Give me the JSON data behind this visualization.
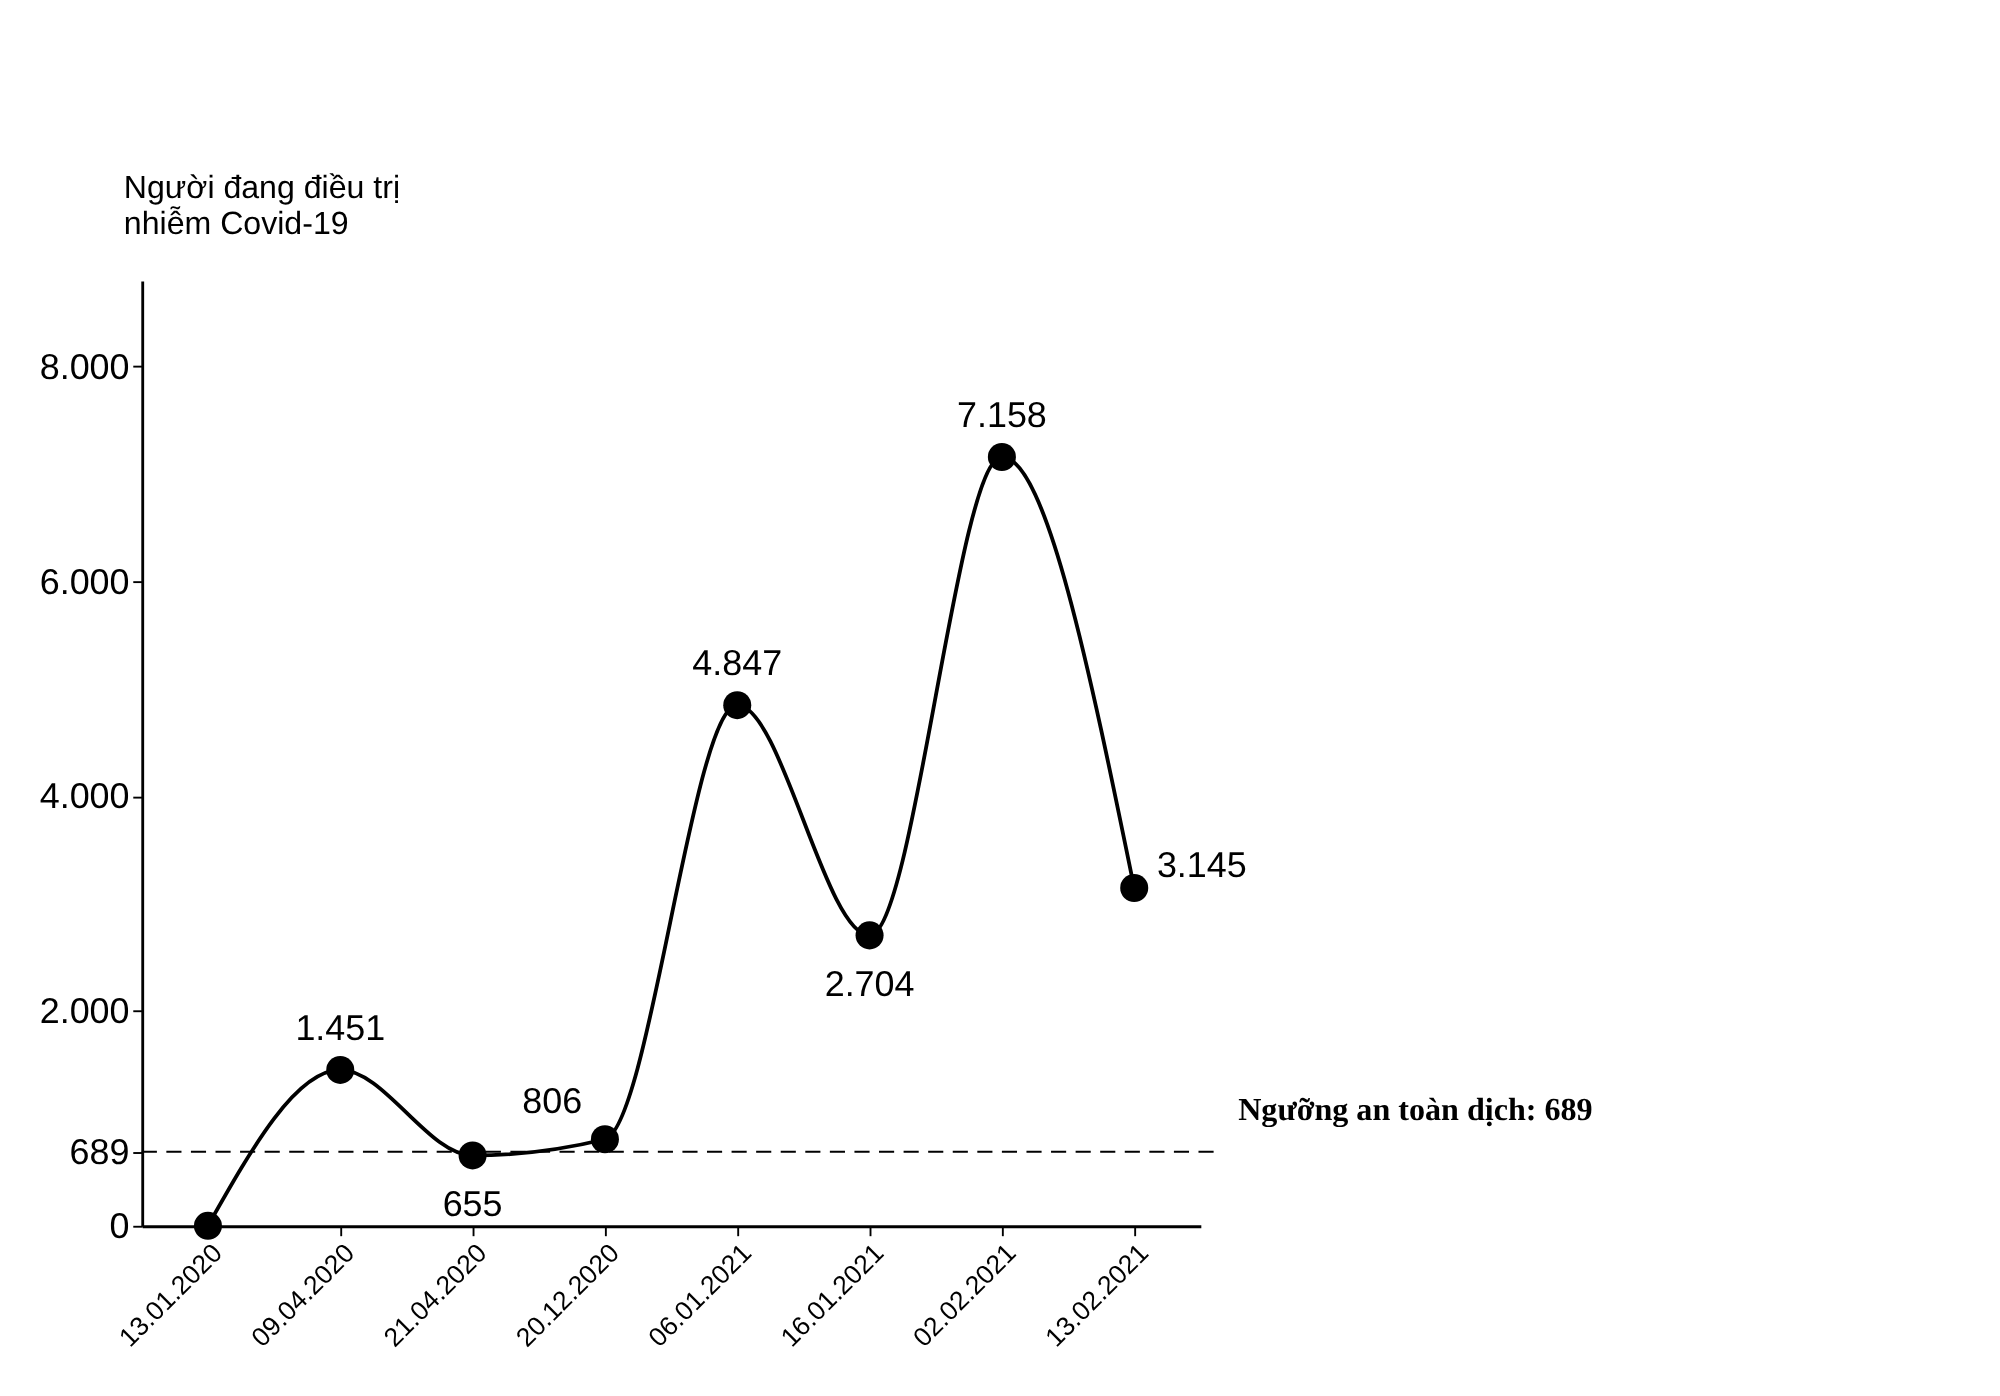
{
  "chart_data": {
    "type": "line",
    "ylabel": "Người đang điều trị nhiễm Covid-19",
    "categories": [
      "13.01.2020",
      "09.04.2020",
      "21.04.2020",
      "20.12.2020",
      "06.01.2021",
      "16.01.2021",
      "02.02.2021",
      "13.02.2021"
    ],
    "series": [
      {
        "color": "#000000",
        "values": [
          0,
          1451,
          655,
          806,
          4847,
          2704,
          7158,
          3145
        ]
      }
    ],
    "value_labels": [
      null,
      "1.451",
      "655",
      "806",
      "4.847",
      "2.704",
      "7.158",
      "3.145"
    ],
    "ylim": [
      0,
      8800
    ],
    "yticks": [
      0,
      689,
      {
        "value": 2000,
        "label": "2.000"
      },
      {
        "value": 4000,
        "label": "4.000"
      },
      {
        "value": 6000,
        "label": "6.000"
      },
      {
        "value": 8000,
        "label": "8.000"
      }
    ],
    "ref_lines": [
      {
        "axis": "y",
        "value": 689,
        "label": "Ngưỡng an toàn dịch: 689",
        "color": "#000000",
        "line_style": "dashed"
      }
    ],
    "marker": "circle",
    "line_style": "solid"
  }
}
